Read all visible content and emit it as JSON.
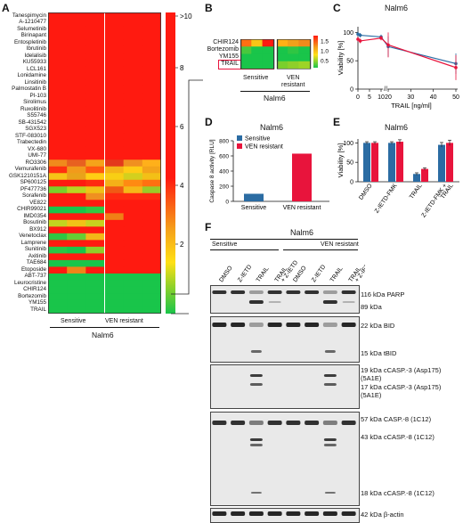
{
  "panels": {
    "A": "A",
    "B": "B",
    "C": "C",
    "D": "D",
    "E": "E",
    "F": "F"
  },
  "panel_A": {
    "drugs": [
      "Tanespimycin",
      "A-1210477",
      "Selumetinib",
      "Birinapant",
      "Entospletinib",
      "Ibrutinib",
      "Idelalisib",
      "KU55933",
      "LCL161",
      "Lonidamine",
      "Linsitinib",
      "Palmostatin B",
      "PI-103",
      "Sirolimus",
      "Ruxolitinib",
      "S55746",
      "SB-431542",
      "SGX523",
      "STF-083010",
      "Trabectedin",
      "VX-680",
      "UMI-77",
      "RO3306",
      "Vemurafenib",
      "GSK1210151A",
      "SP600125",
      "PF477736",
      "Sorafenib",
      "VE822",
      "CHIR99021",
      "IMD0354",
      "Bosutinib",
      "BX912",
      "Venetoclax",
      "Lamprene",
      "Sunitinib",
      "Axitinib",
      "TAE684",
      "Etoposide",
      "ABT-737",
      "Leurocristine",
      "CHIR124",
      "Bortezomib",
      "YM155",
      "TRAIL"
    ],
    "groups": [
      "Sensitive",
      "VEN resistant"
    ],
    "cell_line": "Nalm6",
    "colorbar_ticks": [
      ">10",
      "8",
      "6",
      "4",
      "2"
    ],
    "mid_rows": [
      [
        "#f08a1c",
        "#e86020",
        "#f5a31a",
        "#e33a1c",
        "#f09020",
        "#ffb01a"
      ],
      [
        "#ff3010",
        "#f29a1b",
        "#ff5a10",
        "#f5b418",
        "#ffcc15",
        "#f4a41a"
      ],
      [
        "#f6c417",
        "#e9a31a",
        "#ffce14",
        "#f8cf14",
        "#d3d01e",
        "#f3c016"
      ],
      [
        "#ff1a10",
        "#ff1a10",
        "#ff2a10",
        "#f4b018",
        "#ff8a12",
        "#ff7011"
      ],
      [
        "#7ad02a",
        "#b9d522",
        "#f0c018",
        "#f05a14",
        "#f5b818",
        "#9acc28"
      ],
      [
        "#ff1a10",
        "#ff1a10",
        "#f09020",
        "#ff2a10",
        "#ff2a10",
        "#ff2a10"
      ],
      [
        "#ff1a10",
        "#ff1a10",
        "#ff1a10",
        "#ff1a10",
        "#ff1a10",
        "#ff1a10"
      ],
      [
        "#19c54a",
        "#19c54a",
        "#31c843",
        "#ff1a10",
        "#ff1a10",
        "#ff1a10"
      ],
      [
        "#ff1a10",
        "#ff1a10",
        "#ff1a10",
        "#f07f16",
        "#ff1a10",
        "#ff1a10"
      ],
      [
        "#c3d31f",
        "#f1c117",
        "#c8d21e",
        "#ff1a10",
        "#ff1a10",
        "#ff1a10"
      ],
      [
        "#ff1a10",
        "#ff1a10",
        "#ff1a10",
        "#ff1a10",
        "#ff1a10",
        "#ff1a10"
      ],
      [
        "#2fc643",
        "#66cd34",
        "#f3b518",
        "#ff1a10",
        "#ff1a10",
        "#ff1a10"
      ],
      [
        "#ff1a10",
        "#ff1a10",
        "#ff1a10",
        "#ff1a10",
        "#ff1a10",
        "#ff1a10"
      ],
      [
        "#29c745",
        "#19c54a",
        "#8fcf2a",
        "#ff1a10",
        "#ff1a10",
        "#ff1a10"
      ],
      [
        "#ff1a10",
        "#ff1a10",
        "#ff1a10",
        "#ff1a10",
        "#ff1a10",
        "#ff1a10"
      ],
      [
        "#19c54a",
        "#19c54a",
        "#19c54a",
        "#ff1a10",
        "#ff1a10",
        "#ff1a10"
      ],
      [
        "#ff1a10",
        "#f08418",
        "#ff1a10",
        "#ff1a10",
        "#ff1a10",
        "#ff1a10"
      ],
      [
        "#19c54a",
        "#19c54a",
        "#19c54a",
        "#19c54a",
        "#19c54a",
        "#19c54a"
      ]
    ]
  },
  "panel_B": {
    "rows": [
      "CHIR124",
      "Bortezomib",
      "YM155",
      "TRAIL"
    ],
    "groups": [
      "Sensitive",
      "VEN\nresistant"
    ],
    "group_line1": [
      "Sensitive",
      "VEN"
    ],
    "group_line2": [
      "",
      "resistant"
    ],
    "cell_line": "Nalm6",
    "colorbar_ticks": [
      "1.5",
      "1.0",
      "0.5"
    ]
  },
  "panel_C": {
    "title": "Nalm6",
    "ylabel": "Viability [%]",
    "xlabel": "TRAIL [ng/ml]",
    "y_ticks": [
      "0",
      "50",
      "100"
    ],
    "x_ticks": [
      "0",
      "5",
      "10",
      "20",
      "30",
      "40",
      "50"
    ]
  },
  "panel_D": {
    "title": "Nalm6",
    "ylabel": "Caspase 8 activity [RLU]",
    "y_ticks": [
      "0",
      "200",
      "400",
      "600",
      "800"
    ],
    "categories": [
      "Sensitive",
      "VEN resistant"
    ],
    "legend": [
      "Sensitive",
      "VEN resistant"
    ]
  },
  "panel_E": {
    "title": "Nalm6",
    "ylabel": "Viability [%]",
    "y_ticks": [
      "0",
      "50",
      "100"
    ],
    "categories": [
      "DMSO",
      "Z-IETD-FMK",
      "TRAIL",
      "Z-IETD-FMK +\nTRAIL"
    ]
  },
  "panel_F": {
    "title": "Nalm6",
    "groups": [
      "Sensitive",
      "VEN resistant"
    ],
    "lanes": [
      "DMSO",
      "Z-IETD",
      "TRAIL",
      "TRAIL\n+ Z-IETD",
      "DMSO",
      "Z-IETD",
      "TRAIL",
      "TRAIL\n+ Z-IETD"
    ],
    "bands": [
      "116 kDa PARP",
      "89 kDa",
      "22 kDa BID",
      "15 kDa tBID",
      "19 kDa cCASP.-3 (Asp175)\n(5A1E)",
      "17 kDa cCASP.-3 (Asp175)\n(5A1E)",
      "57 kDa CASP.-8 (1C12)",
      "43 kDa cCASP.-8 (1C12)",
      "18 kDa cCASP.-8 (1C12)",
      "42 kDa β-actin"
    ]
  },
  "colors": {
    "sensitive": "#2b6ca3",
    "ven_resistant": "#e8143c",
    "heat_red": "#ff1a10",
    "heat_green": "#19c54a"
  },
  "chart_data": [
    {
      "type": "heatmap",
      "title": "",
      "categories": [
        "Sensitive",
        "VEN resistant"
      ],
      "note": "drug sensitivity heatmap, color scale 0 to >10"
    },
    {
      "type": "heatmap",
      "rows": [
        "CHIR124",
        "Bortezomib",
        "YM155",
        "TRAIL"
      ],
      "scale": [
        0.5,
        1.5
      ]
    },
    {
      "type": "line",
      "title": "Nalm6",
      "xlabel": "TRAIL [ng/ml]",
      "ylabel": "Viability [%]",
      "x": [
        0,
        1,
        10,
        20,
        50
      ],
      "series": [
        {
          "name": "Sensitive",
          "values": [
            97,
            95,
            92,
            75,
            45
          ]
        },
        {
          "name": "VEN resistant",
          "values": [
            88,
            85,
            90,
            78,
            38
          ]
        }
      ],
      "ylim": [
        0,
        110
      ]
    },
    {
      "type": "bar",
      "title": "Nalm6",
      "categories": [
        "Sensitive",
        "VEN resistant"
      ],
      "values": [
        100,
        630
      ],
      "ylabel": "Caspase 8 activity [RLU]",
      "ylim": [
        0,
        800
      ]
    },
    {
      "type": "bar",
      "title": "Nalm6",
      "categories": [
        "DMSO",
        "Z-IETD-FMK",
        "TRAIL",
        "Z-IETD-FMK + TRAIL"
      ],
      "series": [
        {
          "name": "Sensitive",
          "values": [
            100,
            100,
            20,
            95
          ]
        },
        {
          "name": "VEN resistant",
          "values": [
            100,
            103,
            33,
            100
          ]
        }
      ],
      "ylabel": "Viability [%]",
      "ylim": [
        0,
        110
      ]
    }
  ]
}
